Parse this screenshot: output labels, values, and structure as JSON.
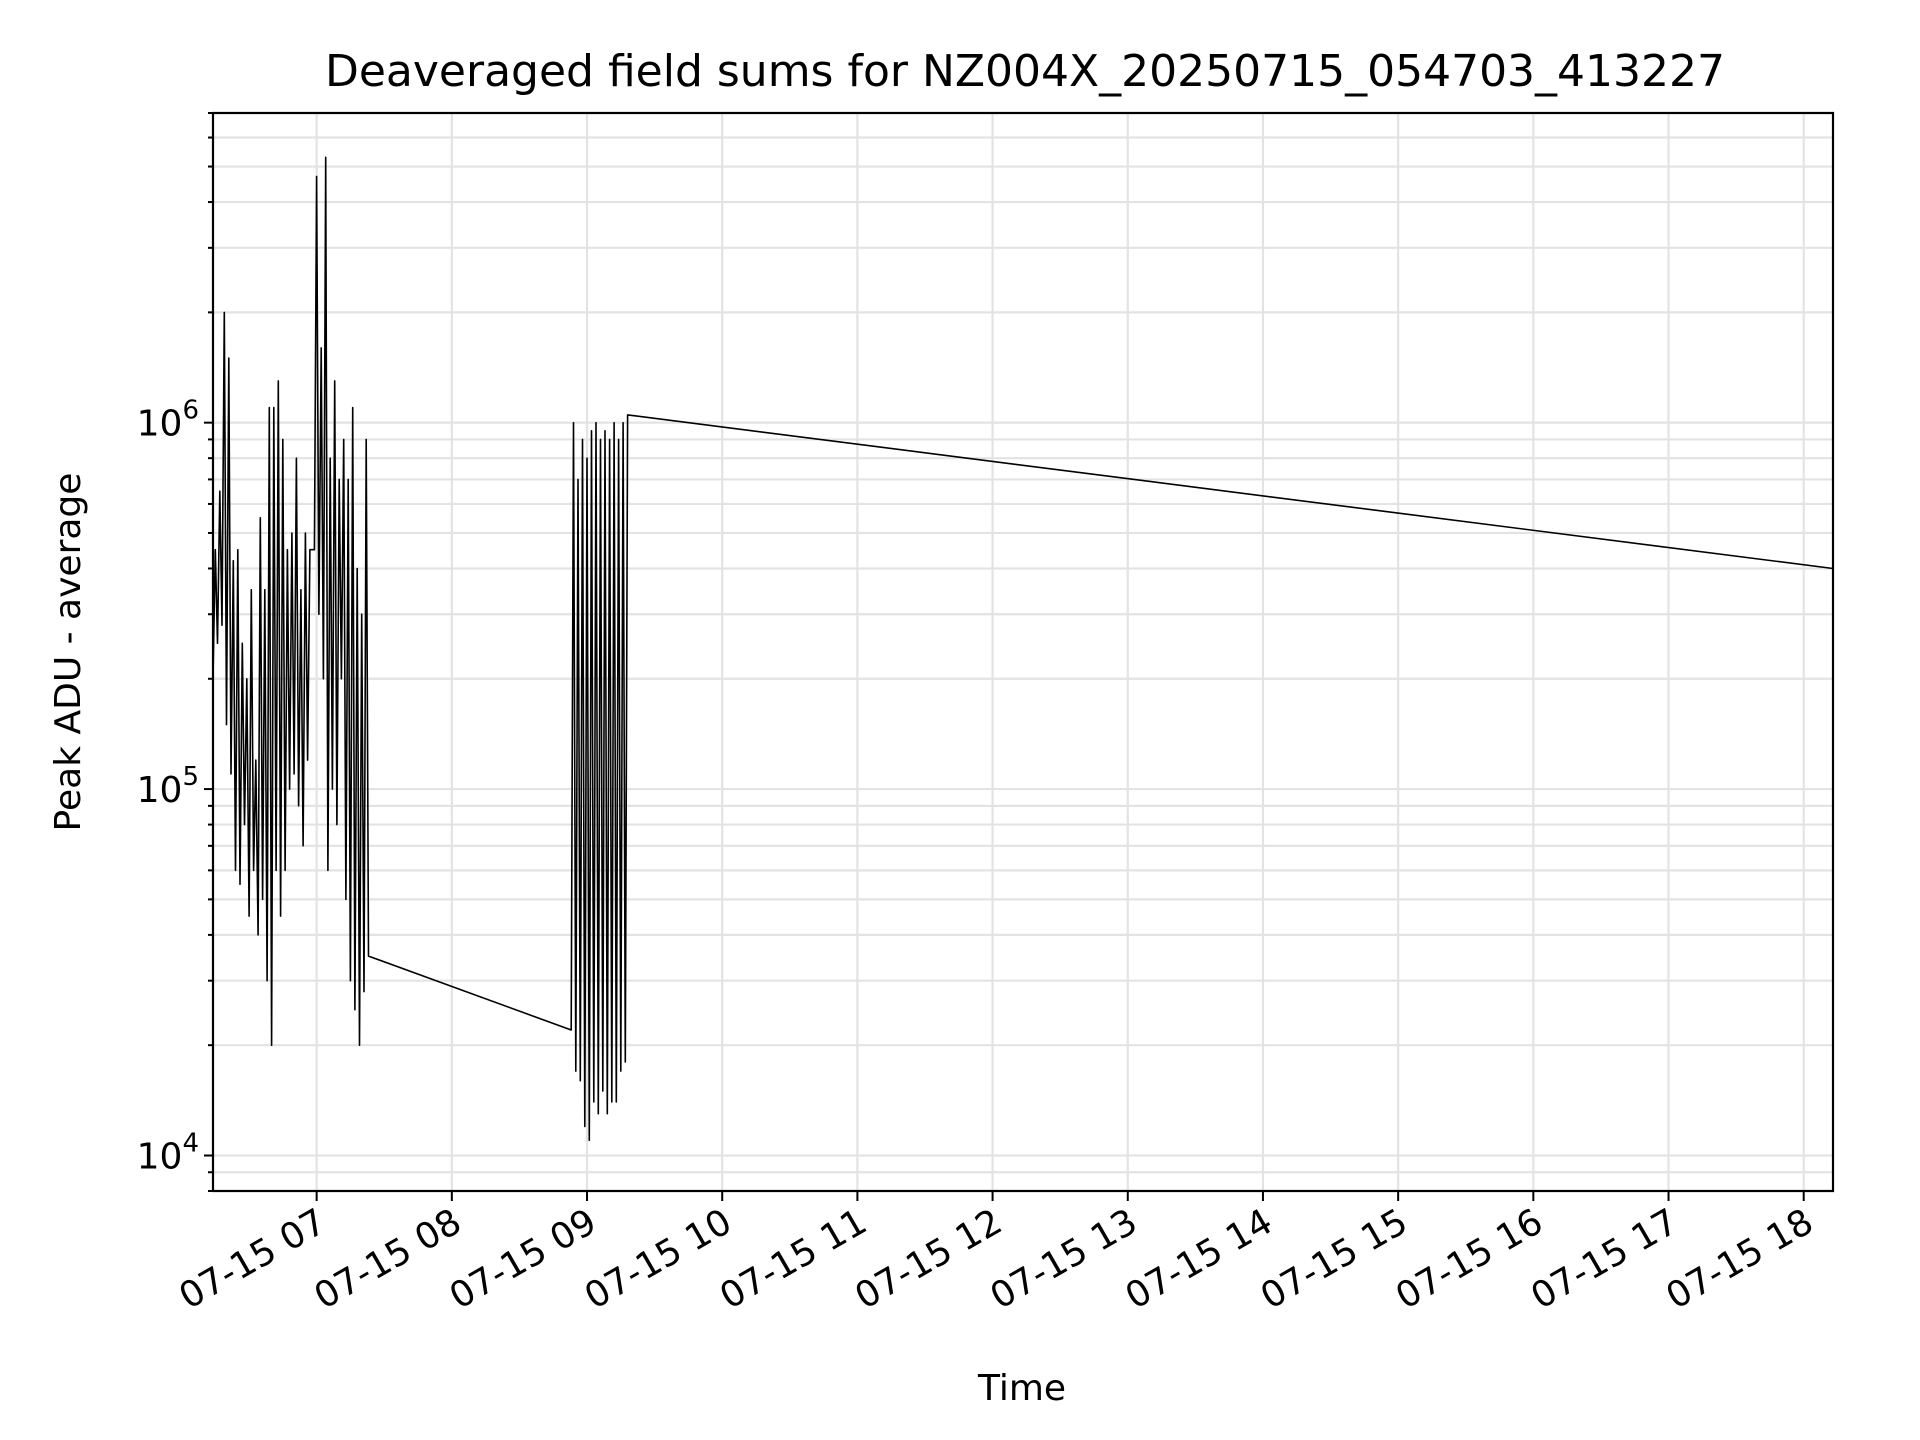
{
  "chart_data": {
    "type": "line",
    "title": "Deaveraged field sums for NZ004X_20250715_054703_413227",
    "xlabel": "Time",
    "ylabel": "Peak ADU - average",
    "yscale": "log",
    "ylim": [
      8000,
      7000000
    ],
    "xlim": [
      "07-15 06:14",
      "07-15 18:13"
    ],
    "grid": true,
    "x_ticks": [
      "07-15 07",
      "07-15 08",
      "07-15 09",
      "07-15 10",
      "07-15 11",
      "07-15 12",
      "07-15 13",
      "07-15 14",
      "07-15 15",
      "07-15 16",
      "07-15 17",
      "07-15 18"
    ],
    "y_ticks": [
      {
        "value": 10000,
        "base": "10",
        "exp": "4"
      },
      {
        "value": 100000,
        "base": "10",
        "exp": "5"
      },
      {
        "value": 1000000,
        "base": "10",
        "exp": "6"
      }
    ],
    "series": [
      {
        "color": "#000000",
        "x": [
          "07-15 06:14",
          "07-15 06:15",
          "07-15 06:16",
          "07-15 06:17",
          "07-15 06:18",
          "07-15 06:19",
          "07-15 06:20",
          "07-15 06:21",
          "07-15 06:22",
          "07-15 06:23",
          "07-15 06:24",
          "07-15 06:25",
          "07-15 06:26",
          "07-15 06:27",
          "07-15 06:28",
          "07-15 06:29",
          "07-15 06:30",
          "07-15 06:31",
          "07-15 06:32",
          "07-15 06:33",
          "07-15 06:34",
          "07-15 06:35",
          "07-15 06:36",
          "07-15 06:37",
          "07-15 06:38",
          "07-15 06:39",
          "07-15 06:40",
          "07-15 06:41",
          "07-15 06:42",
          "07-15 06:43",
          "07-15 06:44",
          "07-15 06:45",
          "07-15 06:46",
          "07-15 06:47",
          "07-15 06:48",
          "07-15 06:49",
          "07-15 06:50",
          "07-15 06:51",
          "07-15 06:52",
          "07-15 06:53",
          "07-15 06:54",
          "07-15 06:55",
          "07-15 06:56",
          "07-15 06:57",
          "07-15 06:58",
          "07-15 06:59",
          "07-15 07:00",
          "07-15 07:01",
          "07-15 07:02",
          "07-15 07:03",
          "07-15 07:04",
          "07-15 07:05",
          "07-15 07:06",
          "07-15 07:07",
          "07-15 07:08",
          "07-15 07:09",
          "07-15 07:10",
          "07-15 07:11",
          "07-15 07:12",
          "07-15 07:13",
          "07-15 07:14",
          "07-15 07:15",
          "07-15 07:16",
          "07-15 07:17",
          "07-15 07:18",
          "07-15 07:19",
          "07-15 07:20",
          "07-15 07:21",
          "07-15 07:22",
          "07-15 07:23",
          "07-15 08:53",
          "07-15 08:54",
          "07-15 08:55",
          "07-15 08:56",
          "07-15 08:57",
          "07-15 08:58",
          "07-15 08:59",
          "07-15 09:00",
          "07-15 09:01",
          "07-15 09:02",
          "07-15 09:03",
          "07-15 09:04",
          "07-15 09:05",
          "07-15 09:06",
          "07-15 09:07",
          "07-15 09:08",
          "07-15 09:09",
          "07-15 09:10",
          "07-15 09:11",
          "07-15 09:12",
          "07-15 09:13",
          "07-15 09:14",
          "07-15 09:15",
          "07-15 09:16",
          "07-15 09:17",
          "07-15 09:18",
          "07-15 18:13"
        ],
        "y": [
          200000,
          450000,
          250000,
          650000,
          280000,
          2000000,
          150000,
          1500000,
          110000,
          420000,
          60000,
          450000,
          55000,
          250000,
          80000,
          200000,
          45000,
          350000,
          60000,
          120000,
          40000,
          550000,
          50000,
          350000,
          30000,
          1100000,
          20000,
          1100000,
          60000,
          1300000,
          45000,
          900000,
          60000,
          450000,
          100000,
          500000,
          110000,
          800000,
          90000,
          350000,
          70000,
          500000,
          120000,
          450000,
          450000,
          450000,
          4700000,
          300000,
          1600000,
          200000,
          5300000,
          60000,
          800000,
          100000,
          1300000,
          80000,
          700000,
          200000,
          900000,
          50000,
          700000,
          30000,
          1100000,
          25000,
          400000,
          20000,
          300000,
          28000,
          900000,
          35000,
          22000,
          1000000,
          17000,
          700000,
          16000,
          900000,
          12000,
          800000,
          11000,
          950000,
          14000,
          1000000,
          13000,
          900000,
          15000,
          950000,
          13000,
          900000,
          14000,
          1000000,
          14000,
          900000,
          17000,
          1000000,
          18000,
          1050000,
          400000
        ]
      }
    ]
  }
}
